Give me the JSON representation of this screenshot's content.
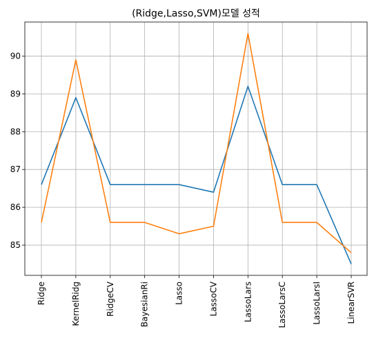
{
  "chart_data": {
    "type": "line",
    "title": "(Ridge,Lasso,SVM)모델 성적",
    "xlabel": "",
    "ylabel": "",
    "categories": [
      "Ridge",
      "KernelRidg",
      "RidgeCV",
      "BayesianRi",
      "Lasso",
      "LassoCV",
      "LassoLars",
      "LassoLarsC",
      "LassoLarsI",
      "LinearSVR"
    ],
    "series": [
      {
        "color": "#1f77b4",
        "values": [
          86.6,
          88.9,
          86.6,
          86.6,
          86.6,
          86.4,
          89.2,
          86.6,
          86.6,
          84.5
        ]
      },
      {
        "color": "#ff7f0e",
        "values": [
          85.6,
          89.9,
          85.6,
          85.6,
          85.3,
          85.5,
          90.6,
          85.6,
          85.6,
          84.8
        ]
      }
    ],
    "yticks": [
      85,
      86,
      87,
      88,
      89,
      90
    ],
    "ylim": [
      84.2,
      90.9
    ],
    "grid": true,
    "legend": "none"
  }
}
